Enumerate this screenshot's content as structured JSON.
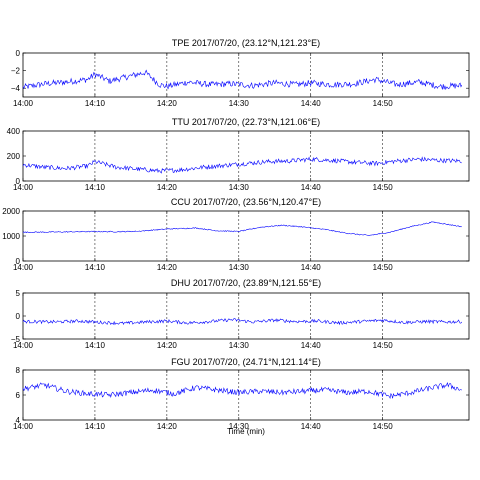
{
  "figure": {
    "xlabel": "Time (min)",
    "trace_color": "#0000ff",
    "grid_color": "#000000"
  },
  "chart_data": [
    {
      "type": "line",
      "title": "TPE 2017/07/20, (23.12°N,121.23°E)",
      "station": "TPE",
      "x_ticks": [
        "14:00",
        "14:10",
        "14:20",
        "14:30",
        "14:40",
        "14:50"
      ],
      "xlim_minutes": [
        0,
        62
      ],
      "ylim": [
        -5,
        0
      ],
      "y_ticks": [
        "0",
        "−2",
        "−4"
      ],
      "y_tick_values": [
        0,
        -2,
        -4
      ],
      "grid": "vertical dashed at tick minutes",
      "x": [
        0,
        3,
        6,
        9,
        10,
        12,
        14,
        17,
        19,
        20,
        23,
        26,
        29,
        32,
        35,
        38,
        40,
        43,
        46,
        49,
        52,
        55,
        58,
        61
      ],
      "values": [
        -3.9,
        -3.5,
        -3.3,
        -3.0,
        -2.4,
        -3.2,
        -2.8,
        -2.2,
        -3.6,
        -3.8,
        -3.3,
        -3.6,
        -3.5,
        -3.7,
        -3.4,
        -3.6,
        -3.4,
        -3.6,
        -3.5,
        -3.0,
        -3.6,
        -3.3,
        -3.8,
        -3.7
      ]
    },
    {
      "type": "line",
      "title": "TTU 2017/07/20, (22.73°N,121.06°E)",
      "station": "TTU",
      "x_ticks": [
        "14:00",
        "14:10",
        "14:20",
        "14:30",
        "14:40",
        "14:50"
      ],
      "xlim_minutes": [
        0,
        62
      ],
      "ylim": [
        0,
        400
      ],
      "y_ticks": [
        "400",
        "200",
        "0"
      ],
      "y_tick_values": [
        400,
        200,
        0
      ],
      "grid": "vertical dashed at tick minutes",
      "x": [
        0,
        3,
        6,
        9,
        10,
        13,
        16,
        19,
        22,
        25,
        28,
        31,
        34,
        37,
        40,
        43,
        46,
        49,
        52,
        55,
        58,
        61
      ],
      "values": [
        130,
        110,
        100,
        120,
        155,
        110,
        95,
        80,
        90,
        110,
        125,
        140,
        155,
        160,
        175,
        165,
        150,
        140,
        160,
        175,
        165,
        160
      ]
    },
    {
      "type": "line",
      "title": "CCU 2017/07/20, (23.56°N,120.47°E)",
      "station": "CCU",
      "x_ticks": [
        "14:00",
        "14:10",
        "14:20",
        "14:30",
        "14:40",
        "14:50"
      ],
      "xlim_minutes": [
        0,
        62
      ],
      "ylim": [
        0,
        2000
      ],
      "y_ticks": [
        "2000",
        "1000",
        "0"
      ],
      "y_tick_values": [
        2000,
        1000,
        0
      ],
      "grid": "vertical dashed at tick minutes",
      "x": [
        0,
        5,
        10,
        13,
        16,
        20,
        24,
        27,
        30,
        33,
        36,
        39,
        42,
        45,
        48,
        51,
        54,
        57,
        60,
        61
      ],
      "values": [
        1150,
        1160,
        1180,
        1170,
        1190,
        1280,
        1320,
        1210,
        1180,
        1350,
        1430,
        1360,
        1260,
        1110,
        1020,
        1150,
        1380,
        1560,
        1420,
        1370
      ]
    },
    {
      "type": "line",
      "title": "DHU 2017/07/20, (23.89°N,121.55°E)",
      "station": "DHU",
      "x_ticks": [
        "14:00",
        "14:10",
        "14:20",
        "14:30",
        "14:40",
        "14:50"
      ],
      "xlim_minutes": [
        0,
        62
      ],
      "ylim": [
        -5,
        5
      ],
      "y_ticks": [
        "5",
        "0",
        "−5"
      ],
      "y_tick_values": [
        5,
        0,
        -5
      ],
      "grid": "vertical dashed at tick minutes",
      "x": [
        0,
        4,
        8,
        11,
        14,
        17,
        20,
        23,
        26,
        29,
        32,
        35,
        38,
        41,
        44,
        47,
        50,
        53,
        56,
        59,
        61
      ],
      "values": [
        -1.2,
        -1.3,
        -1.1,
        -1.4,
        -1.6,
        -1.3,
        -1.1,
        -1.5,
        -1.2,
        -0.8,
        -1.3,
        -0.9,
        -1.2,
        -1.1,
        -1.5,
        -1.2,
        -0.9,
        -1.4,
        -1.2,
        -1.3,
        -1.2
      ]
    },
    {
      "type": "line",
      "title": "FGU 2017/07/20, (24.71°N,121.14°E)",
      "station": "FGU",
      "x_ticks": [
        "14:00",
        "14:10",
        "14:20",
        "14:30",
        "14:40",
        "14:50"
      ],
      "xlim_minutes": [
        0,
        62
      ],
      "ylim": [
        4,
        8
      ],
      "y_ticks": [
        "8",
        "6",
        "4"
      ],
      "y_tick_values": [
        8,
        6,
        4
      ],
      "grid": "vertical dashed at tick minutes",
      "x": [
        0,
        3,
        6,
        9,
        12,
        15,
        18,
        21,
        24,
        27,
        30,
        33,
        36,
        39,
        42,
        45,
        48,
        51,
        54,
        57,
        59,
        61
      ],
      "values": [
        6.5,
        6.8,
        6.3,
        6.1,
        6.0,
        6.2,
        6.4,
        6.1,
        6.6,
        6.4,
        6.2,
        6.3,
        6.2,
        6.3,
        6.4,
        6.2,
        6.3,
        5.9,
        6.2,
        6.6,
        6.8,
        6.4
      ]
    }
  ]
}
